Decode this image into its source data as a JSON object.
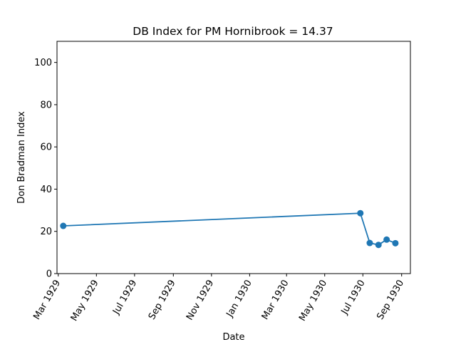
{
  "chart_data": {
    "type": "line",
    "title": "DB Index for PM Hornibrook = 14.37",
    "xlabel": "Date",
    "ylabel": "Don Bradman Index",
    "x_axis_type": "date",
    "xlim": [
      "1929-02-27",
      "1930-09-15"
    ],
    "ylim": [
      0,
      110
    ],
    "yticks": [
      0,
      20,
      40,
      60,
      80,
      100
    ],
    "xticks": [
      {
        "date": "1929-03-01",
        "label": "Mar 1929"
      },
      {
        "date": "1929-05-01",
        "label": "May 1929"
      },
      {
        "date": "1929-07-01",
        "label": "Jul 1929"
      },
      {
        "date": "1929-09-01",
        "label": "Sep 1929"
      },
      {
        "date": "1929-11-01",
        "label": "Nov 1929"
      },
      {
        "date": "1930-01-01",
        "label": "Jan 1930"
      },
      {
        "date": "1930-03-01",
        "label": "Mar 1930"
      },
      {
        "date": "1930-05-01",
        "label": "May 1930"
      },
      {
        "date": "1930-07-01",
        "label": "Jul 1930"
      },
      {
        "date": "1930-09-01",
        "label": "Sep 1930"
      }
    ],
    "grid": false,
    "legend": false,
    "series": [
      {
        "color": "#1f77b4",
        "marker": "circle",
        "points": [
          {
            "x": "1929-03-09",
            "y": 22.6
          },
          {
            "x": "1930-06-27",
            "y": 28.6
          },
          {
            "x": "1930-07-12",
            "y": 14.5
          },
          {
            "x": "1930-07-26",
            "y": 13.6
          },
          {
            "x": "1930-08-08",
            "y": 16.1
          },
          {
            "x": "1930-08-22",
            "y": 14.4
          }
        ]
      }
    ]
  }
}
